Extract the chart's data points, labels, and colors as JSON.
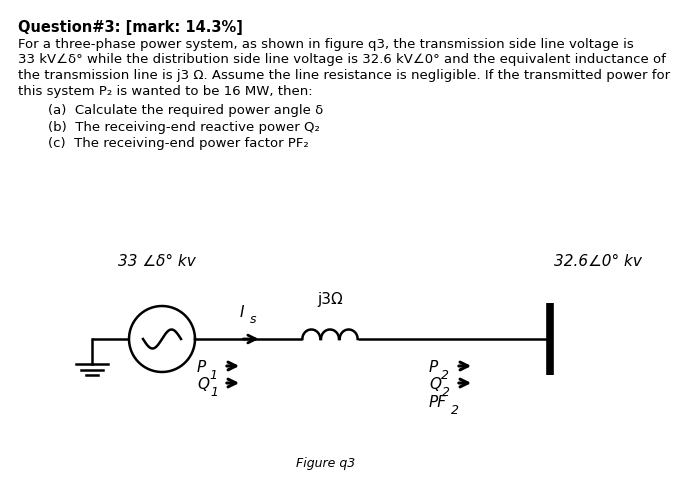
{
  "title": "Question#3: [mark: 14.3%]",
  "body_lines": [
    "For a three-phase power system, as shown in figure q3, the transmission side line voltage is",
    "33 kV∠δ° while the distribution side line voltage is 32.6 kV∠0° and the equivalent inductance of",
    "the transmission line is j3 Ω. Assume the line resistance is negligible. If the transmitted power for",
    "this system P₂ is wanted to be 16 MW, then:"
  ],
  "list_items": [
    "(a)  Calculate the required power angle δ",
    "(b)  The receiving-end reactive power Q₂",
    "(c)  The receiving-end power factor PF₂"
  ],
  "figure_label": "Figure q3",
  "source_label": "33 ∠δ° kv",
  "load_label": "32.6∠0° kv",
  "inductor_label": "j3Ω",
  "current_label": "I",
  "current_sub": "s",
  "p1_label": "P",
  "p1_sub": "1",
  "q1_label": "Q",
  "q1_sub": "1",
  "p2_label": "P",
  "p2_sub": "2",
  "q2_label": "Q",
  "q2_sub": "2",
  "pf2_label": "PF",
  "pf2_sub": "2",
  "bg_color": "#ffffff",
  "text_color": "#000000",
  "title_fontsize": 10.5,
  "body_fontsize": 9.5,
  "list_fontsize": 9.5,
  "circuit_fontsize": 11
}
